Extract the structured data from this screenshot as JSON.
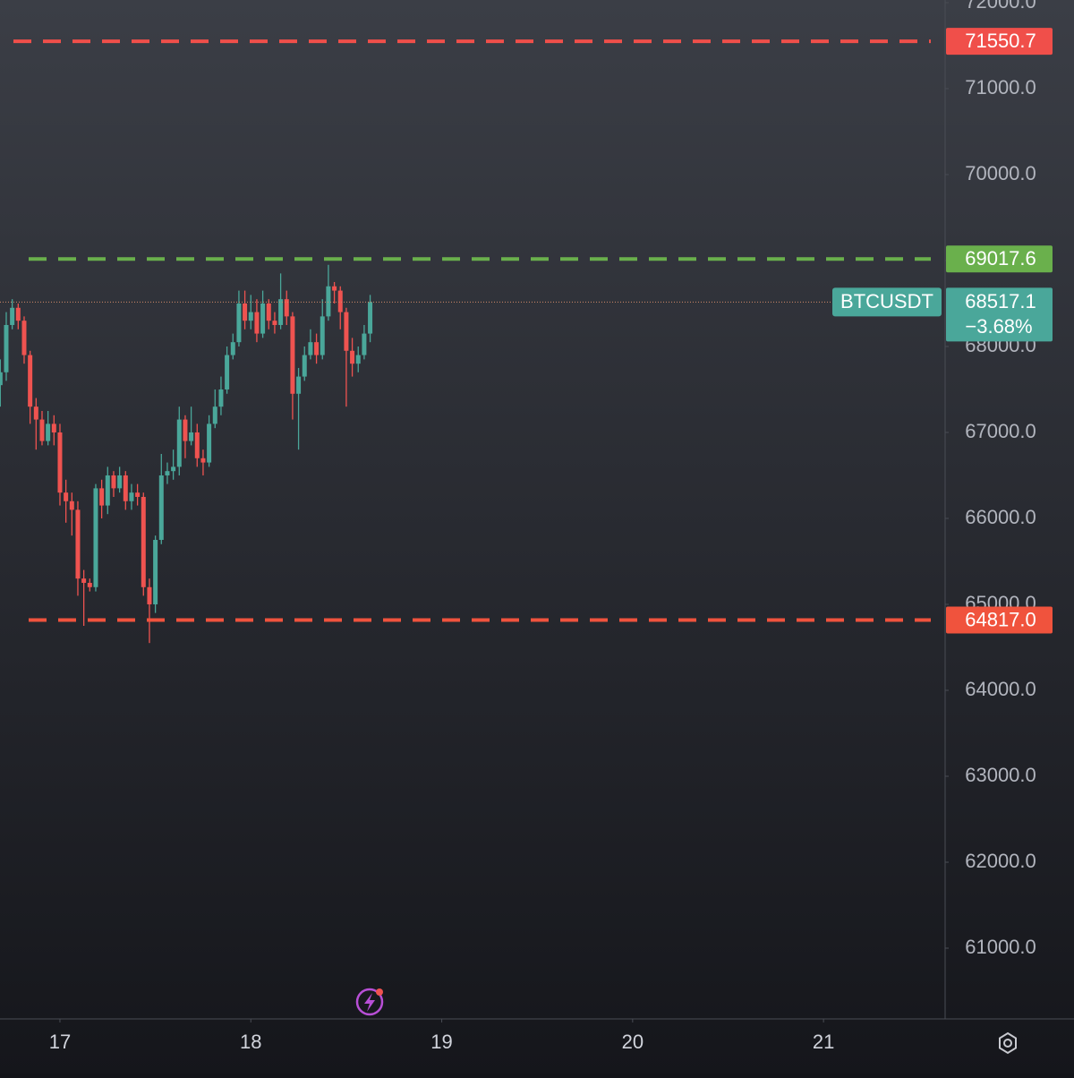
{
  "chart_data": {
    "type": "candlestick",
    "x": [
      16.6875,
      16.71875,
      16.75,
      16.78125,
      16.8125,
      16.84375,
      16.875,
      16.90625,
      16.9375,
      16.96875,
      17,
      17.03125,
      17.0625,
      17.09375,
      17.125,
      17.15625,
      17.1875,
      17.21875,
      17.25,
      17.28125,
      17.3125,
      17.34375,
      17.375,
      17.40625,
      17.4375,
      17.46875,
      17.5,
      17.53125,
      17.5625,
      17.59375,
      17.625,
      17.65625,
      17.6875,
      17.71875,
      17.75,
      17.78125,
      17.8125,
      17.84375,
      17.875,
      17.90625,
      17.9375,
      17.96875,
      18,
      18.03125,
      18.0625,
      18.09375,
      18.125,
      18.15625,
      18.1875,
      18.21875,
      18.25,
      18.28125,
      18.3125,
      18.34375,
      18.375,
      18.40625,
      18.4375,
      18.46875,
      18.5,
      18.53125,
      18.5625,
      18.59375,
      18.625
    ],
    "open": [
      67550,
      67700,
      68250,
      68450,
      68300,
      67900,
      67300,
      67150,
      66900,
      67100,
      67000,
      66300,
      66200,
      66100,
      65300,
      65250,
      65200,
      66350,
      66150,
      66500,
      66350,
      66500,
      66200,
      66300,
      66250,
      65200,
      65000,
      65750,
      66500,
      66550,
      66600,
      67150,
      66900,
      67000,
      66700,
      66650,
      67100,
      67300,
      67500,
      67900,
      68050,
      68500,
      68300,
      68400,
      68150,
      68500,
      68300,
      68250,
      68550,
      68350,
      67450,
      67650,
      67900,
      68050,
      67900,
      68350,
      68700,
      68650,
      68400,
      67950,
      67800,
      67900,
      68150
    ],
    "high": [
      67850,
      68400,
      68550,
      68500,
      68350,
      67950,
      67400,
      67250,
      67250,
      67200,
      67100,
      66450,
      66300,
      66200,
      65400,
      65300,
      66400,
      66450,
      66600,
      66550,
      66600,
      66550,
      66400,
      66400,
      66300,
      65300,
      65800,
      66750,
      66650,
      66800,
      67300,
      67200,
      67300,
      67100,
      66800,
      67200,
      67500,
      67650,
      68000,
      68150,
      68650,
      68650,
      68600,
      68550,
      68650,
      68550,
      68400,
      68850,
      68650,
      68400,
      67750,
      68000,
      68200,
      68150,
      68550,
      68950,
      68750,
      68700,
      68450,
      68100,
      68000,
      68250,
      68600
    ],
    "low": [
      67300,
      67600,
      68200,
      68200,
      67800,
      67100,
      66800,
      66850,
      66850,
      66850,
      66150,
      65950,
      65800,
      65100,
      64750,
      65150,
      65150,
      66000,
      66050,
      66250,
      66300,
      66100,
      66100,
      66150,
      65100,
      64550,
      64900,
      65700,
      66400,
      66450,
      66500,
      66700,
      66850,
      66600,
      66500,
      66600,
      67050,
      67200,
      67450,
      67850,
      68000,
      68200,
      68200,
      68050,
      68100,
      68200,
      68150,
      68200,
      68250,
      67150,
      66800,
      67600,
      67850,
      67800,
      67850,
      68300,
      68500,
      68200,
      67300,
      67650,
      67700,
      67850,
      68050
    ],
    "close": [
      67700,
      68250,
      68450,
      68300,
      67900,
      67300,
      67150,
      66900,
      67100,
      67000,
      66300,
      66200,
      66100,
      65300,
      65250,
      65200,
      66350,
      66150,
      66500,
      66350,
      66500,
      66200,
      66300,
      66250,
      65200,
      65000,
      65750,
      66500,
      66550,
      66600,
      67150,
      66900,
      67000,
      66700,
      66650,
      67100,
      67300,
      67500,
      67900,
      68050,
      68500,
      68300,
      68400,
      68150,
      68500,
      68300,
      68250,
      68550,
      68350,
      67450,
      67650,
      67900,
      68050,
      67900,
      68350,
      68700,
      68650,
      68400,
      67950,
      67800,
      67900,
      68150,
      68517.1
    ],
    "up_color": "#4aa79a",
    "down_color": "#ef5350",
    "xlim": [
      16.686,
      21.637
    ],
    "xticks": [
      17,
      18,
      19,
      20,
      21
    ],
    "ylim": [
      60177,
      72031
    ],
    "yticks": [
      {
        "value": 61000,
        "label": "61000.0"
      },
      {
        "value": 62000,
        "label": "62000.0"
      },
      {
        "value": 63000,
        "label": "63000.0"
      },
      {
        "value": 64000,
        "label": "64000.0"
      },
      {
        "value": 65000,
        "label": "65000.0"
      },
      {
        "value": 66000,
        "label": "66000.0"
      },
      {
        "value": 67000,
        "label": "67000.0"
      },
      {
        "value": 68000,
        "label": "68000.0"
      },
      {
        "value": 69000,
        "label": "69000.0"
      },
      {
        "value": 70000,
        "label": "70000.0"
      },
      {
        "value": 71000,
        "label": "71000.0"
      },
      {
        "value": 72000,
        "label": "72000.0"
      }
    ],
    "levels": [
      {
        "price": 71550.7,
        "color": "#f04f4a"
      },
      {
        "price": 69017.6,
        "color": "#6ab04c"
      },
      {
        "price": {
          "value": 64817,
          "label": "64817.0"
        },
        "color": "#f0533d"
      }
    ],
    "price_tag": {
      "symbol": "BTCUSDT",
      "price": 68517.1,
      "change": {
        "value": -3.68,
        "label": "−3.68%"
      },
      "color": "#4aa79a"
    }
  }
}
